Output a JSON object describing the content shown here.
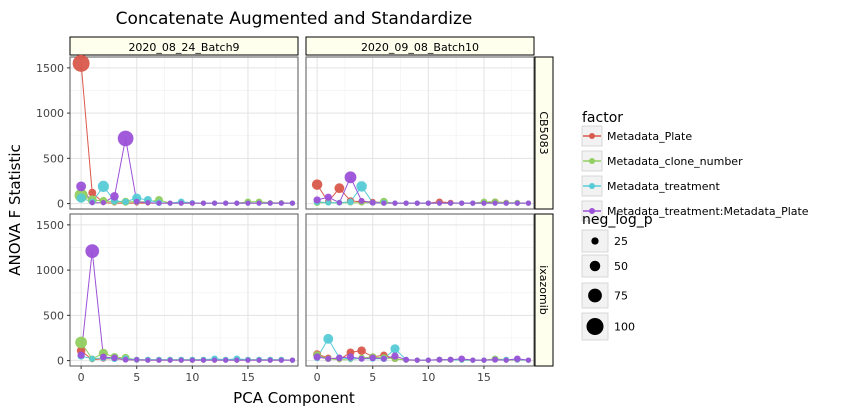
{
  "chart_data": {
    "type": "scatter",
    "title": "Concatenate Augmented and Standardize",
    "xlabel": "PCA Component",
    "ylabel": "ANOVA F Statistic",
    "xlim": [
      -1,
      19.5
    ],
    "ylim": [
      -60,
      1620
    ],
    "x_ticks": [
      0,
      5,
      10,
      15
    ],
    "y_ticks": [
      0,
      500,
      1000,
      1500
    ],
    "grid": true,
    "legend_position": "right",
    "columns": [
      "2020_08_24_Batch9",
      "2020_09_08_Batch10"
    ],
    "rows": [
      "CB5083",
      "ixazomib"
    ],
    "legend_color": {
      "title": "factor",
      "entries": [
        {
          "name": "Metadata_Plate",
          "color": "#d9594c"
        },
        {
          "name": "Metadata_clone_number",
          "color": "#91cf60"
        },
        {
          "name": "Metadata_treatment",
          "color": "#56cbd6"
        },
        {
          "name": "Metadata_treatment:Metadata_Plate",
          "color": "#9b51d8"
        }
      ]
    },
    "legend_size": {
      "title": "neg_log_p",
      "entries": [
        {
          "label": "25",
          "value": 25
        },
        {
          "label": "50",
          "value": 50
        },
        {
          "label": "75",
          "value": 75
        },
        {
          "label": "100",
          "value": 100
        }
      ]
    },
    "x": [
      0,
      1,
      2,
      3,
      4,
      5,
      6,
      7,
      8,
      9,
      10,
      11,
      12,
      13,
      14,
      15,
      16,
      17,
      18,
      19
    ],
    "panels": [
      {
        "column": "2020_08_24_Batch9",
        "row": "CB5083",
        "series": [
          {
            "factor": "Metadata_Plate",
            "y": [
              1550,
              120,
              10,
              5,
              5,
              5,
              5,
              5,
              5,
              5,
              5,
              5,
              5,
              5,
              5,
              5,
              5,
              5,
              5,
              5
            ],
            "neg_log_p": [
              100,
              30,
              5,
              5,
              5,
              5,
              5,
              5,
              5,
              5,
              5,
              5,
              5,
              5,
              5,
              5,
              5,
              5,
              5,
              5
            ]
          },
          {
            "factor": "Metadata_clone_number",
            "y": [
              90,
              40,
              30,
              20,
              20,
              20,
              20,
              40,
              5,
              5,
              5,
              5,
              5,
              5,
              5,
              20,
              20,
              10,
              10,
              5
            ],
            "neg_log_p": [
              70,
              40,
              30,
              20,
              30,
              20,
              20,
              30,
              10,
              10,
              10,
              10,
              10,
              10,
              10,
              20,
              20,
              10,
              10,
              10
            ]
          },
          {
            "factor": "Metadata_treatment",
            "y": [
              60,
              20,
              190,
              30,
              20,
              60,
              40,
              10,
              5,
              20,
              10,
              5,
              5,
              5,
              5,
              5,
              5,
              5,
              5,
              5
            ],
            "neg_log_p": [
              40,
              20,
              55,
              25,
              20,
              40,
              30,
              20,
              10,
              20,
              10,
              10,
              10,
              10,
              10,
              10,
              10,
              10,
              10,
              10
            ]
          },
          {
            "factor": "Metadata_treatment:Metadata_Plate",
            "y": [
              190,
              10,
              10,
              80,
              720,
              20,
              10,
              5,
              5,
              5,
              5,
              5,
              5,
              5,
              5,
              5,
              5,
              5,
              5,
              5
            ],
            "neg_log_p": [
              45,
              10,
              10,
              35,
              90,
              15,
              10,
              10,
              10,
              10,
              10,
              10,
              10,
              10,
              10,
              10,
              10,
              10,
              10,
              10
            ]
          }
        ]
      },
      {
        "column": "2020_09_08_Batch10",
        "row": "CB5083",
        "series": [
          {
            "factor": "Metadata_Plate",
            "y": [
              210,
              20,
              170,
              30,
              20,
              20,
              10,
              5,
              5,
              5,
              5,
              20,
              10,
              5,
              5,
              5,
              20,
              10,
              5,
              5
            ],
            "neg_log_p": [
              50,
              20,
              45,
              25,
              20,
              15,
              15,
              10,
              10,
              10,
              10,
              20,
              15,
              10,
              10,
              10,
              20,
              15,
              10,
              10
            ]
          },
          {
            "factor": "Metadata_clone_number",
            "y": [
              10,
              10,
              10,
              10,
              10,
              10,
              20,
              5,
              5,
              5,
              5,
              5,
              5,
              5,
              5,
              20,
              20,
              10,
              10,
              5
            ],
            "neg_log_p": [
              20,
              15,
              15,
              15,
              15,
              15,
              30,
              10,
              10,
              10,
              10,
              10,
              10,
              10,
              10,
              20,
              20,
              15,
              15,
              10
            ]
          },
          {
            "factor": "Metadata_treatment",
            "y": [
              20,
              10,
              10,
              20,
              190,
              10,
              10,
              5,
              5,
              5,
              5,
              5,
              5,
              5,
              5,
              5,
              5,
              5,
              5,
              5
            ],
            "neg_log_p": [
              20,
              15,
              15,
              20,
              50,
              15,
              15,
              10,
              10,
              10,
              10,
              10,
              10,
              10,
              10,
              10,
              10,
              10,
              10,
              10
            ]
          },
          {
            "factor": "Metadata_treatment:Metadata_Plate",
            "y": [
              40,
              70,
              10,
              290,
              30,
              10,
              5,
              5,
              5,
              5,
              5,
              5,
              5,
              5,
              5,
              5,
              5,
              5,
              5,
              5
            ],
            "neg_log_p": [
              25,
              25,
              10,
              60,
              15,
              15,
              10,
              10,
              10,
              10,
              10,
              10,
              10,
              10,
              10,
              10,
              10,
              10,
              10,
              10
            ]
          }
        ]
      },
      {
        "column": "2020_08_24_Batch9",
        "row": "ixazomib",
        "series": [
          {
            "factor": "Metadata_Plate",
            "y": [
              110,
              10,
              20,
              20,
              10,
              5,
              5,
              5,
              5,
              5,
              5,
              5,
              5,
              5,
              5,
              5,
              5,
              5,
              5,
              5
            ],
            "neg_log_p": [
              35,
              10,
              15,
              15,
              10,
              10,
              10,
              10,
              10,
              10,
              10,
              10,
              10,
              10,
              10,
              10,
              10,
              10,
              10,
              10
            ]
          },
          {
            "factor": "Metadata_clone_number",
            "y": [
              200,
              20,
              80,
              40,
              30,
              10,
              10,
              10,
              10,
              10,
              10,
              10,
              10,
              10,
              10,
              10,
              10,
              10,
              10,
              5
            ],
            "neg_log_p": [
              60,
              20,
              40,
              30,
              30,
              15,
              15,
              15,
              15,
              15,
              15,
              15,
              15,
              15,
              15,
              15,
              15,
              15,
              15,
              10
            ]
          },
          {
            "factor": "Metadata_treatment",
            "y": [
              50,
              20,
              30,
              20,
              20,
              10,
              10,
              10,
              10,
              10,
              10,
              10,
              20,
              10,
              20,
              10,
              10,
              10,
              10,
              5
            ],
            "neg_log_p": [
              25,
              15,
              20,
              20,
              20,
              15,
              15,
              15,
              15,
              15,
              15,
              15,
              20,
              15,
              20,
              15,
              15,
              15,
              15,
              10
            ]
          },
          {
            "factor": "Metadata_treatment:Metadata_Plate",
            "y": [
              60,
              1210,
              40,
              30,
              10,
              10,
              5,
              5,
              5,
              5,
              5,
              5,
              5,
              5,
              5,
              5,
              5,
              5,
              5,
              5
            ],
            "neg_log_p": [
              25,
              75,
              20,
              20,
              15,
              10,
              10,
              10,
              10,
              10,
              10,
              10,
              10,
              10,
              10,
              10,
              10,
              10,
              10,
              10
            ]
          }
        ]
      },
      {
        "column": "2020_09_08_Batch10",
        "row": "ixazomib",
        "series": [
          {
            "factor": "Metadata_Plate",
            "y": [
              70,
              30,
              10,
              90,
              110,
              40,
              60,
              20,
              5,
              5,
              5,
              10,
              10,
              5,
              5,
              5,
              10,
              5,
              5,
              5
            ],
            "neg_log_p": [
              30,
              20,
              10,
              30,
              35,
              25,
              25,
              20,
              10,
              10,
              10,
              15,
              15,
              10,
              10,
              10,
              15,
              10,
              10,
              10
            ]
          },
          {
            "factor": "Metadata_clone_number",
            "y": [
              60,
              20,
              10,
              10,
              30,
              40,
              30,
              20,
              5,
              5,
              5,
              10,
              10,
              5,
              5,
              5,
              20,
              10,
              10,
              5
            ],
            "neg_log_p": [
              30,
              20,
              10,
              10,
              20,
              25,
              25,
              20,
              10,
              10,
              10,
              15,
              15,
              10,
              10,
              10,
              20,
              15,
              15,
              10
            ]
          },
          {
            "factor": "Metadata_treatment",
            "y": [
              30,
              240,
              30,
              20,
              20,
              20,
              20,
              130,
              10,
              5,
              5,
              10,
              10,
              5,
              5,
              5,
              10,
              10,
              10,
              5
            ],
            "neg_log_p": [
              20,
              45,
              20,
              15,
              15,
              15,
              20,
              40,
              15,
              10,
              10,
              15,
              15,
              10,
              10,
              10,
              15,
              15,
              15,
              10
            ]
          },
          {
            "factor": "Metadata_treatment:Metadata_Plate",
            "y": [
              40,
              20,
              30,
              40,
              20,
              30,
              20,
              50,
              10,
              5,
              5,
              10,
              10,
              20,
              5,
              5,
              10,
              5,
              20,
              5
            ],
            "neg_log_p": [
              25,
              15,
              20,
              25,
              15,
              20,
              15,
              25,
              15,
              10,
              10,
              15,
              15,
              20,
              10,
              10,
              15,
              10,
              20,
              10
            ]
          }
        ]
      }
    ]
  }
}
